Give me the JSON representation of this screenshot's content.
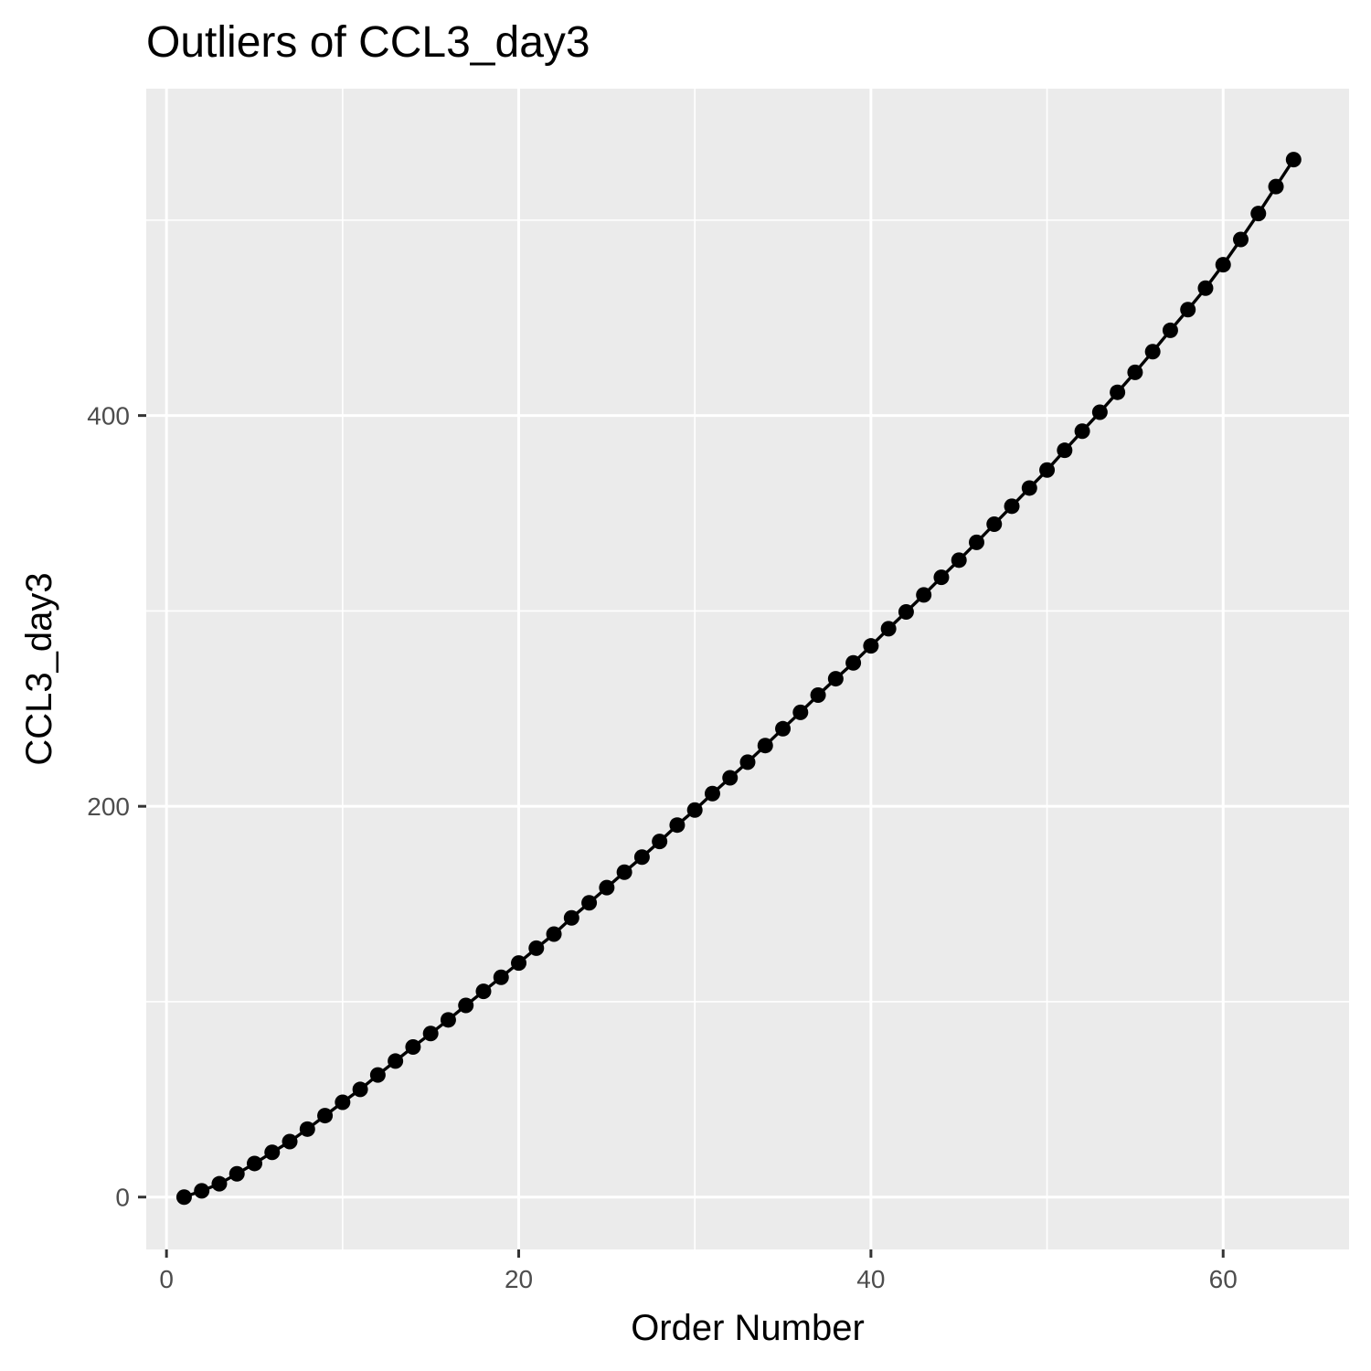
{
  "chart_data": {
    "type": "line",
    "title": "Outliers of CCL3_day3",
    "xlabel": "Order Number",
    "ylabel": "CCL3_day3",
    "xlim": [
      -1.15,
      67.15
    ],
    "ylim": [
      -26.8,
      567.3
    ],
    "x_ticks": [
      0,
      20,
      40,
      60
    ],
    "y_ticks": [
      0,
      200,
      400
    ],
    "x_tick_labels": [
      "0",
      "20",
      "40",
      "60"
    ],
    "y_tick_labels": [
      "0",
      "200",
      "400"
    ],
    "x_minor": [
      10,
      30,
      50
    ],
    "y_minor": [
      100,
      300,
      500
    ],
    "grid": true,
    "markers": true,
    "colors": {
      "panel": "#ebebeb",
      "grid": "#ffffff",
      "series": "#000000",
      "tick": "#333333"
    },
    "series": [
      {
        "values": [
          [
            1,
            0.0
          ],
          [
            2,
            3.2
          ],
          [
            3,
            6.8
          ],
          [
            4,
            11.9
          ],
          [
            5,
            17.2
          ],
          [
            6,
            22.9
          ],
          [
            7,
            28.4
          ],
          [
            8,
            34.8
          ],
          [
            9,
            41.7
          ],
          [
            10,
            48.5
          ],
          [
            11,
            55.1
          ],
          [
            12,
            62.5
          ],
          [
            13,
            69.6
          ],
          [
            14,
            76.8
          ],
          [
            15,
            83.7
          ],
          [
            16,
            90.7
          ],
          [
            17,
            98.1
          ],
          [
            18,
            105.3
          ],
          [
            19,
            112.5
          ],
          [
            20,
            119.8
          ],
          [
            21,
            127.4
          ],
          [
            22,
            134.6
          ],
          [
            23,
            142.9
          ],
          [
            24,
            150.6
          ],
          [
            25,
            158.4
          ],
          [
            26,
            166.3
          ],
          [
            27,
            174.0
          ],
          [
            28,
            182.0
          ],
          [
            29,
            190.4
          ],
          [
            30,
            198.1
          ],
          [
            31,
            206.5
          ],
          [
            32,
            214.6
          ],
          [
            33,
            222.6
          ],
          [
            34,
            231.1
          ],
          [
            35,
            239.7
          ],
          [
            36,
            248.1
          ],
          [
            37,
            256.9
          ],
          [
            38,
            265.3
          ],
          [
            39,
            273.4
          ],
          [
            40,
            282.1
          ],
          [
            41,
            290.9
          ],
          [
            42,
            299.5
          ],
          [
            43,
            308.2
          ],
          [
            44,
            317.2
          ],
          [
            45,
            326.0
          ],
          [
            46,
            335.1
          ],
          [
            47,
            344.4
          ],
          [
            48,
            353.6
          ],
          [
            49,
            362.9
          ],
          [
            50,
            372.1
          ],
          [
            51,
            382.2
          ],
          [
            52,
            392.0
          ],
          [
            53,
            401.7
          ],
          [
            54,
            411.9
          ],
          [
            55,
            422.1
          ],
          [
            56,
            432.7
          ],
          [
            57,
            443.6
          ],
          [
            58,
            454.2
          ],
          [
            59,
            465.2
          ],
          [
            60,
            477.2
          ],
          [
            61,
            490.1
          ],
          [
            62,
            503.4
          ],
          [
            63,
            517.2
          ],
          [
            64,
            531.0
          ]
        ]
      }
    ]
  }
}
